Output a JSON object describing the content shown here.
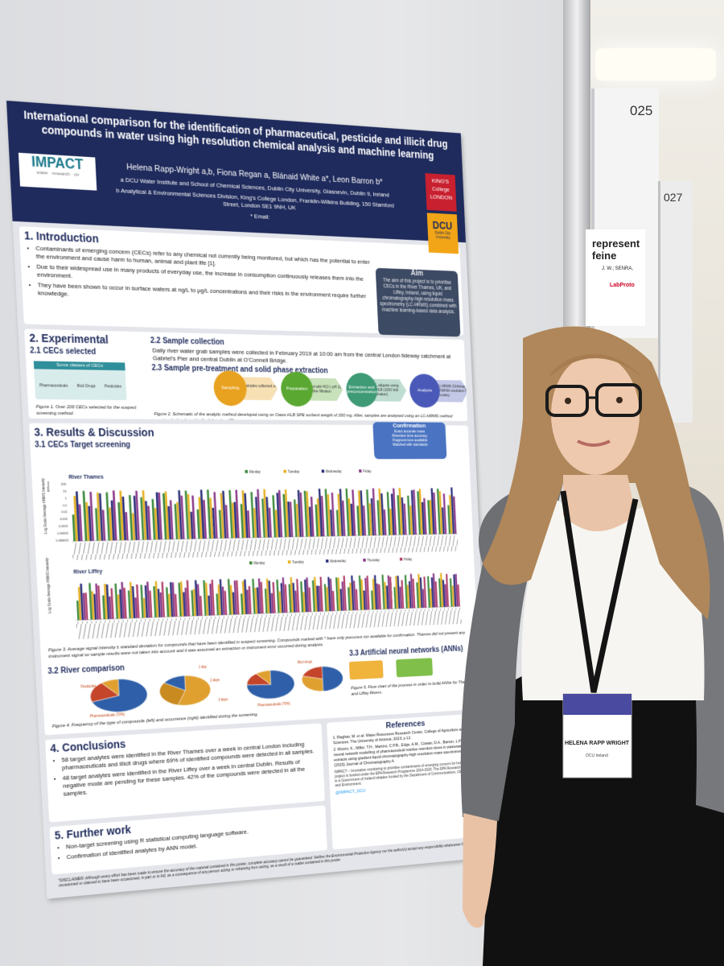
{
  "background": {
    "board_left": "025",
    "board_right": "027",
    "neighbour_title_1": "represent",
    "neighbour_title_2": "feine",
    "neighbour_author": "J. W.; SENRA,",
    "neighbour_logo": "LabProto"
  },
  "poster": {
    "header": {
      "title": "International comparison for the identification of pharmaceutical, pesticide and illicit drug compounds in water using high resolution chemical analysis and machine learning",
      "authors": "Helena Rapp-Wright a,b, Fiona Regan a, Blánaid White a*, Leon Barron b*",
      "affiliation_a": "a DCU Water Institute and School of Chemical Sciences, Dublin City University, Glasnevin, Dublin 9, Ireland",
      "affiliation_b": "b Analytical & Environmental Sciences Division, King's College London, Franklin-Wilkins Building, 150 Stamford Street, London SE1 9NH, UK",
      "email": "* Email:",
      "logo_impact": "IMPACT",
      "logo_impact_sub": "water · research · ctr",
      "logo_kings": "KING'S College LONDON",
      "logo_dcu": "DCU",
      "logo_dcu_sub": "Dublin City University"
    },
    "introduction": {
      "heading": "1. Introduction",
      "bullets": [
        "Contaminants of emerging concern (CECs) refer to any chemical not currently being monitored, but which has the potential to enter the environment and cause harm to human, animal and plant life [1].",
        "Due to their widespread use in many products of everyday use, the increase in consumption continuously releases them into the environment.",
        "They have been shown to occur in surface waters at ng/L to µg/L concentrations and their risks in the environment require further knowledge."
      ]
    },
    "aim": {
      "heading": "Aim",
      "text": "The aim of this project is to prioritise CECs in the River Thames, UK, and Liffey, Ireland, using liquid chromatography-high resolution mass spectrometry (LC-HRMS) combined with machine learning-based data analysis."
    },
    "experimental": {
      "heading": "2. Experimental",
      "cecs_heading": "2.1 CECs selected",
      "cecs_box_title": "Some classes of CECs",
      "cecs_classes": [
        "Pharmaceuticals",
        "Illicit Drugs",
        "Pesticides"
      ],
      "figure1": "Figure 1. Over 200 CECs selected for the suspect screening method.",
      "sampling_heading": "2.2 Sample collection",
      "sampling_text": "Daily river water grab samples were collected in February 2019 at 10:00 am from the central London tideway catchment at Gabriel's Pier and central Dublin at O'Connell Bridge.",
      "spe_heading": "2.3 Sample pre-treatment and solid phase extraction",
      "steps": [
        {
          "name": "Sampling",
          "detail": "Grab samples collected on 4 days"
        },
        {
          "name": "Preparation",
          "detail": "Acidified with HCl (~pH 2) Glass fibre filtration"
        },
        {
          "name": "Extraction and preconcentration",
          "detail": "100 mL aliquots using Oasis HLB (1000 fold concentration)"
        },
        {
          "name": "Analysis",
          "detail": "SPE LC-HRMS (Orbitrap) 50000 FWHM resolution 5 ppm accuracy"
        }
      ],
      "figure2": "Figure 2. Schematic of the analytic method developed using on Oasis HLB SPE sorbent weight of 200 mg. After, samples are analysed using an LC-HRMS method previously developed in the laboratory [2]."
    },
    "results": {
      "heading": "3. Results & Discussion",
      "screening_heading": "3.1 CECs Target screening",
      "confirmation_heading": "Confirmation",
      "confirmation_items": [
        "Exact accurate mass",
        "Retention time accuracy",
        "Fragment ions available",
        "Matched with standards"
      ],
      "thames": {
        "title": "River Thames",
        "unit": "Millions",
        "ylabel": "Log Scale Average HRMS Intensity",
        "legend": [
          "Monday",
          "Tuesday",
          "Wednesday",
          "Friday"
        ],
        "yticks": [
          "100",
          "10",
          "1",
          "0.1",
          "0.01",
          "0.001",
          "0.0001",
          "0.00001",
          "0.000001"
        ]
      },
      "liffey": {
        "title": "River Liffey",
        "ylabel": "Log Scale Average HRMS Intensity",
        "legend": [
          "Monday",
          "Tuesday",
          "Wednesday",
          "Thursday",
          "Friday"
        ]
      },
      "figure3": "Figure 3. Average signal intensity ± standard deviation for compounds that have been identified in suspect screening. Compounds marked with * have only precursor ion available for confirmation. Thames did not present any instrument signal so sample results were not taken into account and it was assumed an extraction or instrument error occurred during analysis.",
      "comparison_heading": "3.2 River comparison",
      "pie_labels": [
        "Pesticides",
        "Pharmaceuticals (70%)",
        "1 day",
        "2 days",
        "3 days",
        "Pharmaceuticals (76%)",
        "Illicit drugs"
      ],
      "figure4": "Figure 4. Frequency of the type of compounds (left) and occurrence (right) identified during the screening.",
      "ann_heading": "3.3 Artificial neural networks (ANNs)",
      "figure5": "Figure 5. Flow chart of the process in order to build ANNs for Thames and Liffey Rivers."
    },
    "references": {
      "heading": "References",
      "items": [
        "1. Raghav, M. et al. Water Resources Research Center, College of Agriculture and Life Sciences, The University of Arizona; 2013; p 12.",
        "2. Munro, K., Miller, T.H., Martins, C.P.B., Edge, A.M., Cowan, D.A., Barron, L.P. Artificial neural network modelling of pharmaceutical residue retention times in wastewater extracts using gradient liquid chromatography-high resolution mass spectrometry data (2015) Journal of Chromatography A."
      ],
      "impact_note": "IMPACT – Innovative monitoring to prioritise contaminants of emerging concern for Ireland. This project is funded under the EPA Research Programme 2014-2020. The EPA Research Programme is a Government of Ireland initiative funded by the Department of Communications, Climate Action and Environment.",
      "twitter": "@IMPACT_DCU"
    },
    "conclusions": {
      "heading": "4. Conclusions",
      "bullets": [
        "58 target analytes were identified in the River Thames over a week in central London including pharmaceuticals and illicit drugs where 69% of identified compounds were detected in all samples.",
        "48 target analytes were identified in the River Liffey over a week in central Dublin. Results of negative mode are pending for these samples. 42% of the compounds were detected in all the samples."
      ]
    },
    "further_work": {
      "heading": "5. Further work",
      "bullets": [
        "Non-target screening using R statistical computing language software.",
        "Confirmation of identified analytes by ANN model."
      ]
    },
    "disclaimer": "*DISCLAIMER: Although every effort has been made to ensure the accuracy of the material contained in this poster, complete accuracy cannot be guaranteed. Neither the Environmental Protection Agency nor the author(s) accept any responsibility whatsoever for loss or damage occasioned or claimed to have been occasioned, in part or in full, as a consequence of any person acting or refraining from acting, as a result of a matter contained in this poster."
  },
  "badge": {
    "name": "HELENA RAPP WRIGHT",
    "affiliation": "DCU Ireland"
  }
}
